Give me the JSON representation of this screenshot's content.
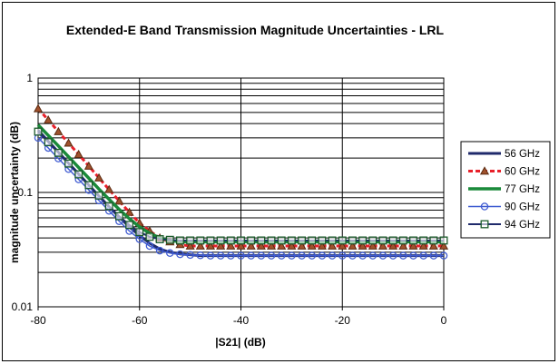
{
  "chart_data": {
    "type": "line",
    "title": "Extended-E Band Transmission Magnitude Uncertainties - LRL",
    "xlabel": "|S21| (dB)",
    "ylabel": "magnitude uncertainty (dB)",
    "xlim": [
      -80,
      0
    ],
    "ylim": [
      0.01,
      1
    ],
    "y_scale": "log",
    "x_ticks": [
      -80,
      -60,
      -40,
      -20,
      0
    ],
    "x_tick_labels": [
      "-80",
      "-60",
      "-40",
      "-20",
      "0"
    ],
    "y_ticks": [
      0.01,
      0.1,
      1
    ],
    "y_tick_labels": [
      "0.01",
      "0.1",
      "1"
    ],
    "grid": true,
    "legend_position": "right",
    "x": [
      -80,
      -78,
      -76,
      -74,
      -72,
      -70,
      -68,
      -66,
      -64,
      -62,
      -60,
      -58,
      -56,
      -54,
      -52,
      -50,
      -48,
      -46,
      -44,
      -42,
      -40,
      -38,
      -36,
      -34,
      -32,
      -30,
      -28,
      -26,
      -24,
      -22,
      -20,
      -18,
      -16,
      -14,
      -12,
      -10,
      -8,
      -6,
      -4,
      -2,
      0
    ],
    "series": [
      {
        "name": "56 GHz",
        "color": "#1f2a6b",
        "marker": "none",
        "values": [
          0.35,
          0.28,
          0.225,
          0.18,
          0.145,
          0.116,
          0.093,
          0.075,
          0.061,
          0.05,
          0.042,
          0.036,
          0.032,
          0.03,
          0.029,
          0.0285,
          0.028,
          0.028,
          0.028,
          0.028,
          0.028,
          0.028,
          0.028,
          0.028,
          0.028,
          0.028,
          0.028,
          0.028,
          0.028,
          0.028,
          0.028,
          0.028,
          0.028,
          0.028,
          0.028,
          0.028,
          0.028,
          0.028,
          0.028,
          0.028,
          0.028
        ]
      },
      {
        "name": "60 GHz",
        "color": "#e8202a",
        "marker": "triangle",
        "values": [
          0.54,
          0.43,
          0.34,
          0.27,
          0.215,
          0.17,
          0.134,
          0.106,
          0.084,
          0.067,
          0.054,
          0.046,
          0.04,
          0.037,
          0.035,
          0.034,
          0.034,
          0.034,
          0.034,
          0.034,
          0.034,
          0.034,
          0.034,
          0.034,
          0.034,
          0.034,
          0.034,
          0.034,
          0.034,
          0.034,
          0.034,
          0.034,
          0.034,
          0.034,
          0.034,
          0.034,
          0.034,
          0.034,
          0.034,
          0.034,
          0.034
        ]
      },
      {
        "name": "77 GHz",
        "color": "#1a8a3a",
        "marker": "none",
        "values": [
          0.39,
          0.315,
          0.255,
          0.205,
          0.165,
          0.133,
          0.107,
          0.087,
          0.071,
          0.059,
          0.05,
          0.044,
          0.04,
          0.038,
          0.037,
          0.037,
          0.037,
          0.037,
          0.037,
          0.037,
          0.037,
          0.037,
          0.037,
          0.037,
          0.037,
          0.037,
          0.037,
          0.037,
          0.037,
          0.037,
          0.037,
          0.037,
          0.037,
          0.037,
          0.037,
          0.037,
          0.037,
          0.037,
          0.037,
          0.037,
          0.037
        ]
      },
      {
        "name": "90 GHz",
        "color": "#3f5bd1",
        "marker": "circle",
        "values": [
          0.3,
          0.245,
          0.198,
          0.16,
          0.13,
          0.105,
          0.085,
          0.069,
          0.056,
          0.046,
          0.039,
          0.034,
          0.031,
          0.0295,
          0.0288,
          0.0284,
          0.0282,
          0.028,
          0.028,
          0.028,
          0.028,
          0.028,
          0.028,
          0.028,
          0.028,
          0.028,
          0.028,
          0.028,
          0.028,
          0.028,
          0.028,
          0.028,
          0.028,
          0.028,
          0.028,
          0.028,
          0.028,
          0.028,
          0.028,
          0.028,
          0.028
        ]
      },
      {
        "name": "94 GHz",
        "color": "#1f2a6b",
        "marker": "square",
        "values": [
          0.34,
          0.275,
          0.222,
          0.179,
          0.144,
          0.116,
          0.094,
          0.076,
          0.062,
          0.052,
          0.045,
          0.041,
          0.039,
          0.0385,
          0.038,
          0.038,
          0.038,
          0.038,
          0.038,
          0.038,
          0.038,
          0.038,
          0.038,
          0.038,
          0.038,
          0.038,
          0.038,
          0.038,
          0.038,
          0.038,
          0.038,
          0.038,
          0.038,
          0.038,
          0.038,
          0.038,
          0.038,
          0.038,
          0.038,
          0.038,
          0.038
        ]
      }
    ]
  }
}
